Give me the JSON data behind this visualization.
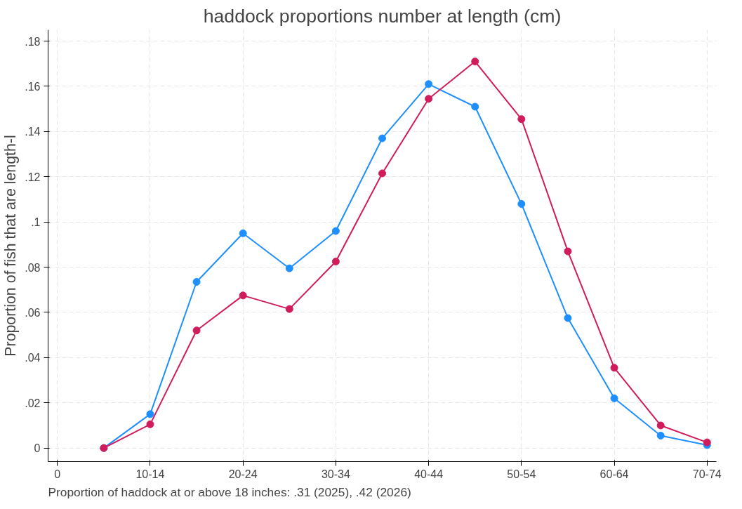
{
  "chart_data": {
    "type": "line",
    "title": "haddock proportions number at length (cm)",
    "ylabel": "Proportion of fish that are length-l",
    "categories": [
      "0",
      null,
      "10-14",
      null,
      "20-24",
      null,
      "30-34",
      null,
      "40-44",
      null,
      "50-54",
      null,
      "60-64",
      null,
      "70-74"
    ],
    "series": [
      {
        "color": "#1e8fff",
        "values": [
          null,
          0,
          0.015,
          0.0735,
          0.095,
          0.0795,
          0.096,
          0.137,
          0.161,
          0.151,
          0.108,
          0.0575,
          0.022,
          0.0055,
          0.0013
        ]
      },
      {
        "color": "#d01c5b",
        "values": [
          null,
          0,
          0.0105,
          0.052,
          0.0675,
          0.0615,
          0.0825,
          0.1215,
          0.1545,
          0.171,
          0.1455,
          0.087,
          0.0355,
          0.01,
          0.0025
        ]
      }
    ],
    "ylim": [
      -0.006,
      0.185
    ],
    "yticks": [
      0,
      {
        "value": 0.02,
        "label": ".02"
      },
      {
        "value": 0.04,
        "label": ".04"
      },
      {
        "value": 0.06,
        "label": ".06"
      },
      {
        "value": 0.08,
        "label": ".08"
      },
      {
        "value": 0.1,
        "label": ".1"
      },
      {
        "value": 0.12,
        "label": ".12"
      },
      {
        "value": 0.14,
        "label": ".14"
      },
      {
        "value": 0.16,
        "label": ".16"
      },
      {
        "value": 0.18,
        "label": ".18"
      }
    ],
    "grid": true,
    "marker": "circle",
    "line_style": "solid",
    "annotations": [
      "Proportion of haddock at or above 18 inches:  .31 (2025), .42 (2026)"
    ]
  }
}
